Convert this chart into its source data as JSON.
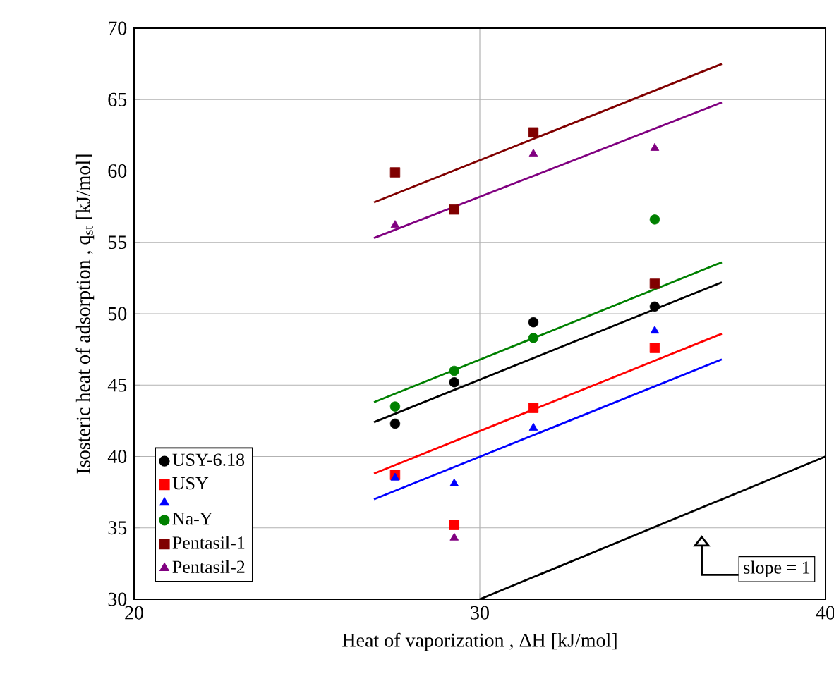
{
  "chart_data": {
    "type": "scatter",
    "xlabel": "Heat of vaporization , ΔH [kJ/mol]",
    "ylabel": "Isosteric heat of adsorption , q$_{st}$ [kJ/mol]",
    "xlim": [
      20,
      40
    ],
    "xticks": [
      20,
      30,
      40
    ],
    "ylim": [
      30,
      70
    ],
    "yticks": [
      30,
      35,
      40,
      45,
      50,
      55,
      60,
      65,
      70
    ],
    "grid": true,
    "legend": "bottom left",
    "annotations": [
      "slope = 1"
    ],
    "series": [
      {
        "name": "USY-6.18",
        "marker": "circle",
        "color": "#000000",
        "x": [
          27.55,
          29.26,
          31.55,
          35.06
        ],
        "values": [
          42.3,
          45.2,
          49.4,
          50.5
        ]
      },
      {
        "name": "USY",
        "marker": "square",
        "color": "#ff0000",
        "x": [
          27.55,
          29.26,
          31.55,
          35.06
        ],
        "values": [
          38.7,
          35.2,
          43.4,
          47.6
        ]
      },
      {
        "marker": "triangle",
        "color": "#0000ff",
        "x": [
          27.55,
          29.26,
          31.55,
          35.06
        ],
        "values": [
          38.5,
          38.1,
          42.0,
          48.8
        ]
      },
      {
        "name": "Na-Y",
        "marker": "circle",
        "color": "#008000",
        "x": [
          27.55,
          29.26,
          31.55,
          35.06
        ],
        "values": [
          43.5,
          46.0,
          48.3,
          56.6
        ]
      },
      {
        "name": "Pentasil-1",
        "marker": "square",
        "color": "#800000",
        "x": [
          27.55,
          29.26,
          31.55,
          35.06
        ],
        "values": [
          59.9,
          57.3,
          62.7,
          52.1
        ]
      },
      {
        "name": "Pentasil-2",
        "marker": "triangle",
        "color": "#800080",
        "x": [
          27.55,
          29.26,
          31.55,
          35.06
        ],
        "values": [
          56.2,
          34.3,
          61.2,
          61.6
        ]
      },
      {
        "type": "line",
        "marker": "none",
        "color": "#000000",
        "x": [
          26.94,
          37.0
        ],
        "values": [
          42.4,
          52.2
        ]
      },
      {
        "type": "line",
        "marker": "none",
        "color": "#ff0000",
        "x": [
          26.94,
          37.0
        ],
        "values": [
          38.8,
          48.6
        ]
      },
      {
        "type": "line",
        "marker": "none",
        "color": "#0000ff",
        "x": [
          26.94,
          37.0
        ],
        "values": [
          37.0,
          46.8
        ]
      },
      {
        "type": "line",
        "marker": "none",
        "color": "#008000",
        "x": [
          26.94,
          37.0
        ],
        "values": [
          43.8,
          53.6
        ]
      },
      {
        "type": "line",
        "marker": "none",
        "color": "#800000",
        "x": [
          26.94,
          37.0
        ],
        "values": [
          57.8,
          67.5
        ]
      },
      {
        "type": "line",
        "marker": "none",
        "color": "#800080",
        "x": [
          26.94,
          37.0
        ],
        "values": [
          55.3,
          64.8
        ]
      },
      {
        "type": "line",
        "marker": "none",
        "color": "#000000",
        "x": [
          30,
          40
        ],
        "values": [
          30,
          40
        ]
      }
    ]
  }
}
